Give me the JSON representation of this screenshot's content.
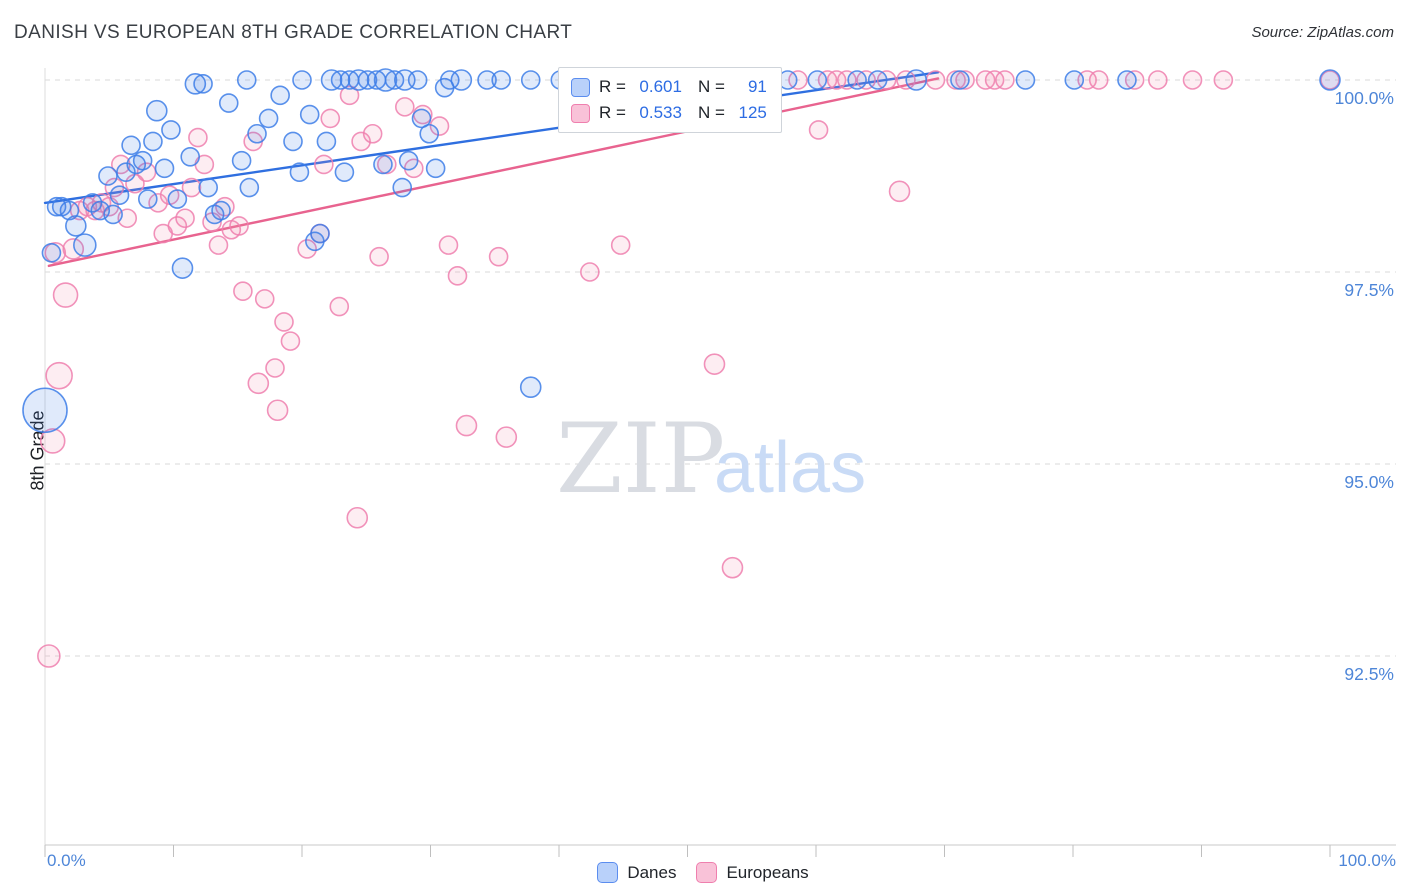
{
  "header": {
    "title": "DANISH VS EUROPEAN 8TH GRADE CORRELATION CHART",
    "source": "Source: ZipAtlas.com"
  },
  "watermark": {
    "zip": "ZIP",
    "atlas": "atlas"
  },
  "axes": {
    "y_label": "8th Grade",
    "x_min_label": "0.0%",
    "x_max_label": "100.0%"
  },
  "legend_box": {
    "rows": [
      {
        "series": "Danes",
        "r_label": "R = ",
        "r_value": "0.601",
        "n_label": "N = ",
        "n_value": "91"
      },
      {
        "series": "Europeans",
        "r_label": "R = ",
        "r_value": "0.533",
        "n_label": "N = ",
        "n_value": "125"
      }
    ]
  },
  "bottom_legend": {
    "danes": "Danes",
    "europeans": "Europeans"
  },
  "chart_data": {
    "type": "scatter",
    "title": "DANISH VS EUROPEAN 8TH GRADE CORRELATION CHART",
    "xlabel": "",
    "ylabel": "8th Grade",
    "x_range": [
      0,
      100
    ],
    "y_range": [
      90.0,
      100.2
    ],
    "grid": "horizontal-dashed",
    "yticks": [
      100.0,
      97.5,
      95.0,
      92.5
    ],
    "ytick_labels": [
      "100.0%",
      "97.5%",
      "95.0%",
      "92.5%"
    ],
    "xticks": [
      0,
      10,
      20,
      30,
      40,
      50,
      60,
      70,
      80,
      90,
      100
    ],
    "legend_position": "top-center and bottom-center",
    "series": [
      {
        "name": "Danes",
        "color": "#3d7ee8",
        "fill": "rgba(61,126,232,0.16)",
        "R": 0.601,
        "N": 91,
        "points": [
          [
            0.0,
            95.7,
            22
          ],
          [
            0.5,
            97.75,
            9
          ],
          [
            0.9,
            98.35,
            9
          ],
          [
            1.3,
            98.35,
            9
          ],
          [
            1.9,
            98.3,
            9
          ],
          [
            2.4,
            98.1,
            10
          ],
          [
            3.1,
            97.85,
            11
          ],
          [
            3.7,
            98.4,
            9
          ],
          [
            4.3,
            98.3,
            9
          ],
          [
            4.9,
            98.75,
            9
          ],
          [
            5.3,
            98.25,
            9
          ],
          [
            5.8,
            98.5,
            9
          ],
          [
            6.3,
            98.8,
            9
          ],
          [
            6.7,
            99.15,
            9
          ],
          [
            7.1,
            98.9,
            9
          ],
          [
            7.6,
            98.95,
            9
          ],
          [
            8.0,
            98.45,
            9
          ],
          [
            8.4,
            99.2,
            9
          ],
          [
            8.7,
            99.6,
            10
          ],
          [
            9.3,
            98.85,
            9
          ],
          [
            9.8,
            99.35,
            9
          ],
          [
            10.3,
            98.45,
            9
          ],
          [
            10.7,
            97.55,
            10
          ],
          [
            11.3,
            99.0,
            9
          ],
          [
            11.7,
            99.95,
            10
          ],
          [
            12.3,
            99.95,
            9
          ],
          [
            12.7,
            98.6,
            9
          ],
          [
            13.2,
            98.25,
            9
          ],
          [
            13.7,
            98.3,
            9
          ],
          [
            14.3,
            99.7,
            9
          ],
          [
            15.3,
            98.95,
            9
          ],
          [
            15.7,
            100,
            9
          ],
          [
            15.9,
            98.6,
            9
          ],
          [
            16.5,
            99.3,
            9
          ],
          [
            17.4,
            99.5,
            9
          ],
          [
            18.3,
            99.8,
            9
          ],
          [
            19.3,
            99.2,
            9
          ],
          [
            19.8,
            98.8,
            9
          ],
          [
            20.0,
            100,
            9
          ],
          [
            20.6,
            99.55,
            9
          ],
          [
            21.0,
            97.9,
            9
          ],
          [
            21.4,
            98.0,
            9
          ],
          [
            21.9,
            99.2,
            9
          ],
          [
            22.3,
            100,
            10
          ],
          [
            23.0,
            100,
            9
          ],
          [
            23.3,
            98.8,
            9
          ],
          [
            23.7,
            100,
            9
          ],
          [
            24.4,
            100,
            10
          ],
          [
            25.1,
            100,
            9
          ],
          [
            25.8,
            100,
            9
          ],
          [
            26.3,
            98.9,
            9
          ],
          [
            26.5,
            100,
            11
          ],
          [
            27.2,
            100,
            9
          ],
          [
            27.8,
            98.6,
            9
          ],
          [
            28.0,
            100,
            10
          ],
          [
            28.3,
            98.95,
            9
          ],
          [
            29.0,
            100,
            9
          ],
          [
            29.3,
            99.5,
            9
          ],
          [
            29.9,
            99.3,
            9
          ],
          [
            30.4,
            98.85,
            9
          ],
          [
            31.1,
            99.9,
            9
          ],
          [
            31.5,
            100,
            9
          ],
          [
            32.4,
            100,
            10
          ],
          [
            34.4,
            100,
            9
          ],
          [
            35.5,
            100,
            9
          ],
          [
            37.8,
            96.0,
            10
          ],
          [
            37.8,
            100,
            9
          ],
          [
            40.1,
            100,
            9
          ],
          [
            44.7,
            100,
            9
          ],
          [
            46.3,
            100,
            9
          ],
          [
            52.1,
            100,
            9
          ],
          [
            55.5,
            100,
            9
          ],
          [
            57.8,
            100,
            9
          ],
          [
            60.1,
            100,
            9
          ],
          [
            63.2,
            100,
            9
          ],
          [
            64.8,
            100,
            9
          ],
          [
            67.8,
            100,
            10
          ],
          [
            71.2,
            100,
            9
          ],
          [
            76.3,
            100,
            9
          ],
          [
            80.1,
            100,
            9
          ],
          [
            84.2,
            100,
            9
          ],
          [
            100,
            100,
            10
          ]
        ]
      },
      {
        "name": "Europeans",
        "color": "#ef7fae",
        "fill": "rgba(244,143,177,0.16)",
        "R": 0.533,
        "N": 125,
        "points": [
          [
            0.3,
            92.5,
            11
          ],
          [
            0.6,
            95.3,
            12
          ],
          [
            1.1,
            96.15,
            13
          ],
          [
            1.6,
            97.2,
            12
          ],
          [
            0.8,
            97.75,
            10
          ],
          [
            2.2,
            97.8,
            10
          ],
          [
            2.7,
            98.3,
            9
          ],
          [
            3.3,
            98.35,
            9
          ],
          [
            3.9,
            98.3,
            9
          ],
          [
            4.4,
            98.4,
            9
          ],
          [
            5.0,
            98.35,
            9
          ],
          [
            5.4,
            98.6,
            9
          ],
          [
            5.9,
            98.9,
            9
          ],
          [
            6.4,
            98.2,
            9
          ],
          [
            7.0,
            98.65,
            9
          ],
          [
            7.9,
            98.8,
            9
          ],
          [
            8.8,
            98.4,
            9
          ],
          [
            9.2,
            98.0,
            9
          ],
          [
            9.7,
            98.5,
            9
          ],
          [
            10.3,
            98.1,
            9
          ],
          [
            10.9,
            98.2,
            9
          ],
          [
            11.4,
            98.6,
            9
          ],
          [
            11.9,
            99.25,
            9
          ],
          [
            12.4,
            98.9,
            9
          ],
          [
            13.0,
            98.15,
            9
          ],
          [
            13.5,
            97.85,
            9
          ],
          [
            14.0,
            98.35,
            9
          ],
          [
            14.5,
            98.05,
            9
          ],
          [
            15.1,
            98.1,
            9
          ],
          [
            15.4,
            97.25,
            9
          ],
          [
            16.2,
            99.2,
            9
          ],
          [
            16.6,
            96.05,
            10
          ],
          [
            17.1,
            97.15,
            9
          ],
          [
            17.9,
            96.25,
            9
          ],
          [
            18.1,
            95.7,
            10
          ],
          [
            18.6,
            96.85,
            9
          ],
          [
            19.1,
            96.6,
            9
          ],
          [
            20.4,
            97.8,
            9
          ],
          [
            21.4,
            98.0,
            9
          ],
          [
            21.7,
            98.9,
            9
          ],
          [
            22.2,
            99.5,
            9
          ],
          [
            22.9,
            97.05,
            9
          ],
          [
            23.7,
            99.8,
            9
          ],
          [
            24.3,
            94.3,
            10
          ],
          [
            24.6,
            99.2,
            9
          ],
          [
            25.5,
            99.3,
            9
          ],
          [
            26.0,
            97.7,
            9
          ],
          [
            26.6,
            98.9,
            9
          ],
          [
            28.0,
            99.65,
            9
          ],
          [
            28.7,
            98.85,
            9
          ],
          [
            29.4,
            99.55,
            9
          ],
          [
            30.7,
            99.4,
            9
          ],
          [
            31.4,
            97.85,
            9
          ],
          [
            32.1,
            97.45,
            9
          ],
          [
            32.8,
            95.5,
            10
          ],
          [
            35.3,
            97.7,
            9
          ],
          [
            35.9,
            95.35,
            10
          ],
          [
            42.4,
            97.5,
            9
          ],
          [
            44.8,
            97.85,
            9
          ],
          [
            52.1,
            96.3,
            10
          ],
          [
            53.5,
            93.65,
            10
          ],
          [
            60.2,
            99.35,
            9
          ],
          [
            66.5,
            98.55,
            10
          ],
          [
            40.8,
            100,
            9
          ],
          [
            41.9,
            100,
            9
          ],
          [
            43.1,
            100,
            9
          ],
          [
            44.0,
            100,
            9
          ],
          [
            45.4,
            100,
            9
          ],
          [
            46.9,
            100,
            9
          ],
          [
            48.0,
            100,
            9
          ],
          [
            48.8,
            100,
            9
          ],
          [
            49.6,
            100,
            9
          ],
          [
            50.4,
            100,
            9
          ],
          [
            51.2,
            100,
            9
          ],
          [
            53.2,
            100,
            9
          ],
          [
            54.7,
            100,
            9
          ],
          [
            56.3,
            100,
            9
          ],
          [
            58.6,
            100,
            9
          ],
          [
            60.9,
            100,
            9
          ],
          [
            61.6,
            100,
            9
          ],
          [
            62.4,
            100,
            9
          ],
          [
            63.9,
            100,
            9
          ],
          [
            65.5,
            100,
            9
          ],
          [
            67.0,
            100,
            9
          ],
          [
            69.3,
            100,
            9
          ],
          [
            70.9,
            100,
            9
          ],
          [
            71.6,
            100,
            9
          ],
          [
            73.2,
            100,
            9
          ],
          [
            73.9,
            100,
            9
          ],
          [
            74.7,
            100,
            9
          ],
          [
            81.1,
            100,
            9
          ],
          [
            82.0,
            100,
            9
          ],
          [
            84.8,
            100,
            9
          ],
          [
            86.6,
            100,
            9
          ],
          [
            89.3,
            100,
            9
          ],
          [
            91.7,
            100,
            9
          ],
          [
            100,
            100,
            9
          ]
        ]
      }
    ],
    "trendlines": [
      {
        "series": "Danes",
        "color": "#2f6fe0",
        "x1": 0.0,
        "y1": 98.4,
        "x2": 69.5,
        "y2": 100.1
      },
      {
        "series": "Europeans",
        "color": "#e8638f",
        "x1": 0.3,
        "y1": 97.58,
        "x2": 69.5,
        "y2": 100.02
      }
    ]
  }
}
